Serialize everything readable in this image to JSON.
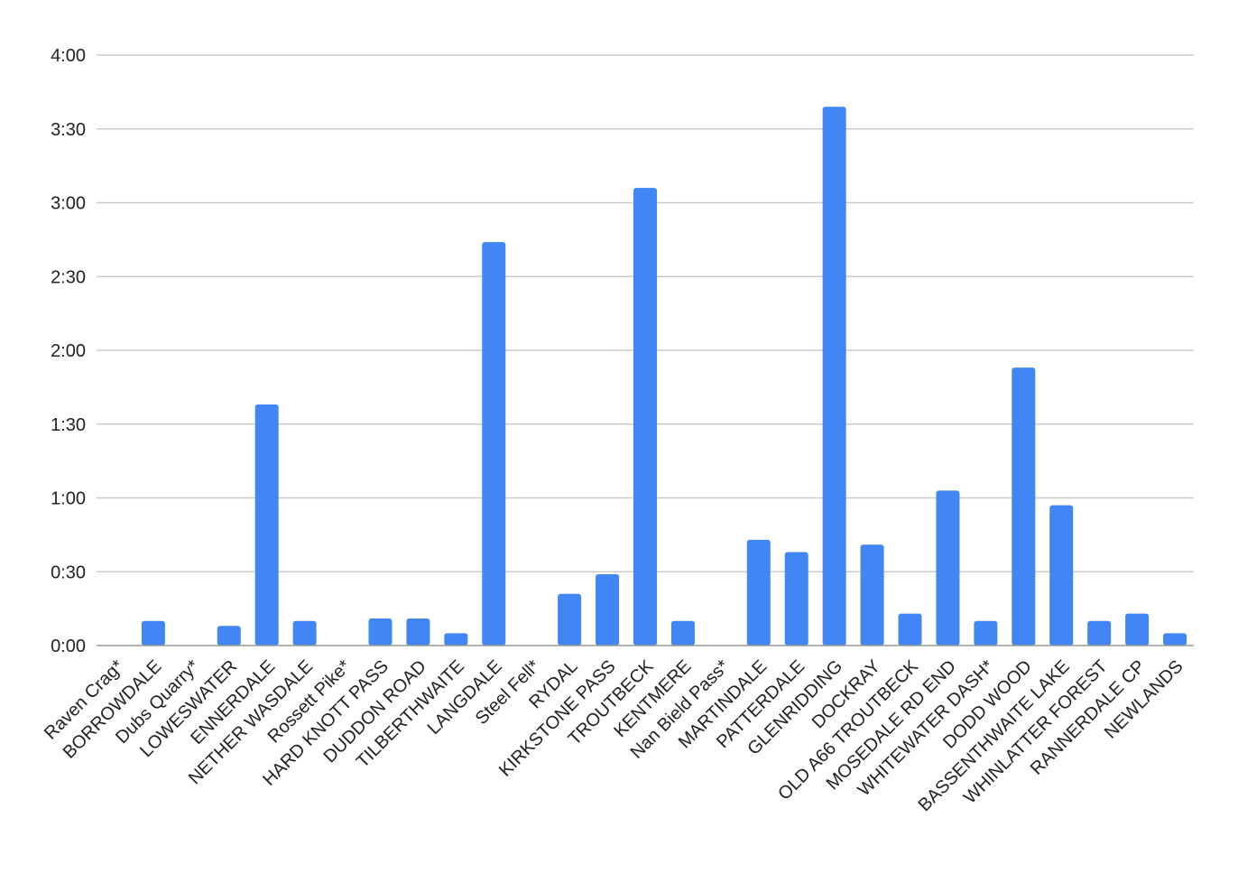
{
  "chart_data": {
    "type": "bar",
    "title": "",
    "xlabel": "",
    "ylabel": "",
    "y_unit": "minutes",
    "ylim": [
      0,
      240
    ],
    "y_ticks": [
      0,
      30,
      60,
      90,
      120,
      150,
      180,
      210,
      240
    ],
    "y_tick_labels": [
      "0:00",
      "0:30",
      "1:00",
      "1:30",
      "2:00",
      "2:30",
      "3:00",
      "3:30",
      "4:00"
    ],
    "grid": true,
    "legend": "none",
    "bar_color": "#4285f4",
    "categories": [
      "Raven Crag*",
      "BORROWDALE",
      "Dubs Quarry*",
      "LOWESWATER",
      "ENNERDALE",
      "NETHER WASDALE",
      "Rossett Pike*",
      "HARD KNOTT PASS",
      "DUDDON ROAD",
      "TILBERTHWAITE",
      "LANGDALE",
      "Steel Fell*",
      "RYDAL",
      "KIRKSTONE PASS",
      "TROUTBECK",
      "KENTMERE",
      "Nan Bield Pass*",
      "MARTINDALE",
      "PATTERDALE",
      "GLENRIDDING",
      "DOCKRAY",
      "OLD A66 TROUTBECK",
      "MOSEDALE RD END",
      "WHITEWATER DASH*",
      "DODD WOOD",
      "BASSENTHWAITE LAKE",
      "WHINLATTER FOREST",
      "RANNERDALE CP",
      "NEWLANDS"
    ],
    "values": [
      0,
      10,
      0,
      8,
      98,
      10,
      0,
      11,
      11,
      5,
      164,
      0,
      21,
      29,
      186,
      10,
      0,
      43,
      38,
      219,
      41,
      13,
      63,
      10,
      113,
      57,
      10,
      13,
      5
    ]
  }
}
